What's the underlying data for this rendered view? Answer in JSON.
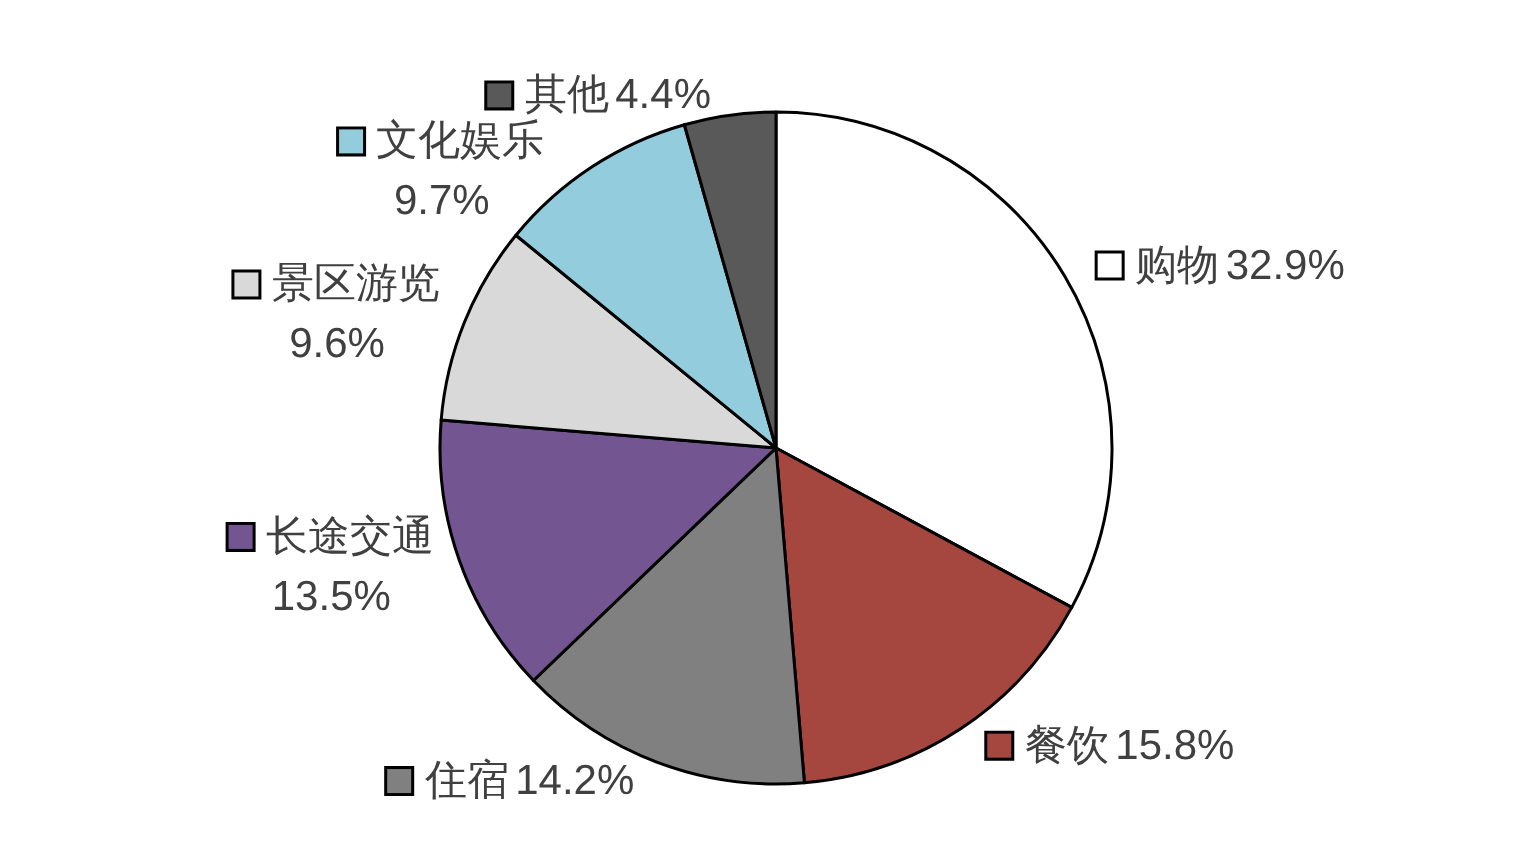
{
  "chart_data": {
    "type": "pie",
    "categories": [
      "购物",
      "餐饮",
      "住宿",
      "长途交通",
      "景区游览",
      "文化娱乐",
      "其他"
    ],
    "values": [
      32.9,
      15.8,
      14.2,
      13.5,
      9.6,
      9.7,
      4.4
    ],
    "value_labels": [
      "32.9%",
      "15.8%",
      "14.2%",
      "13.5%",
      "9.6%",
      "9.7%",
      "4.4%"
    ],
    "colors": [
      "#ffffff",
      "#a5473f",
      "#808080",
      "#735592",
      "#d9d9d9",
      "#93cddd",
      "#595959"
    ],
    "legend": true
  }
}
